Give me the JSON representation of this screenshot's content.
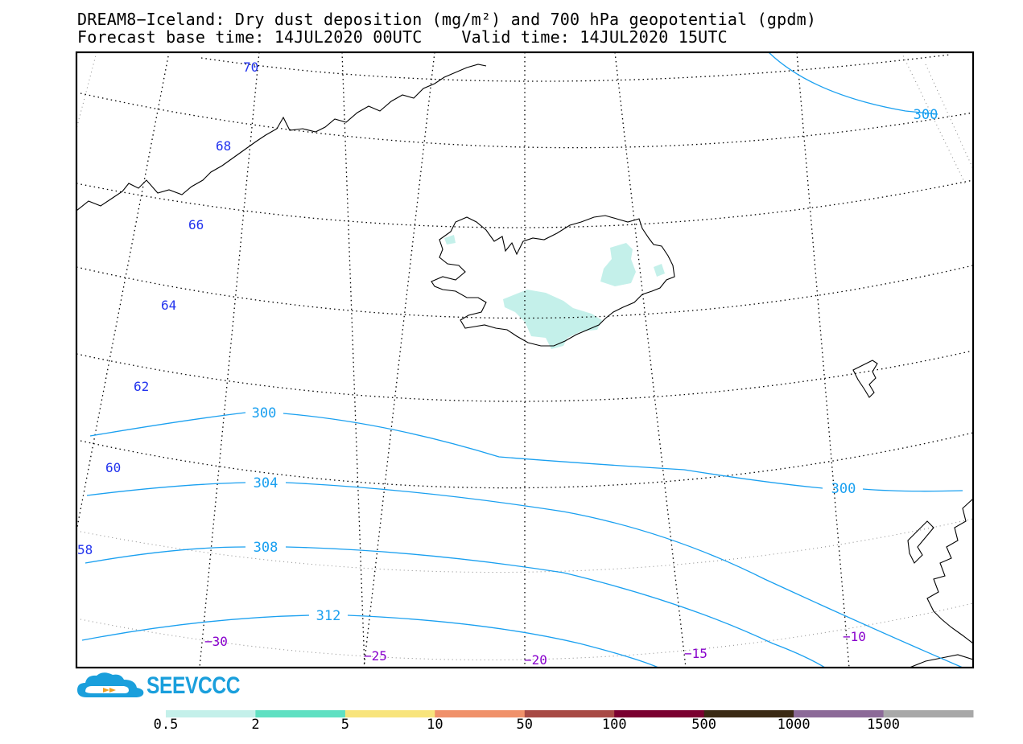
{
  "title": {
    "line1": "DREAM8−Iceland: Dry dust deposition (mg/m²) and 700 hPa geopotential (gpdm)",
    "line2": "Forecast base time: 14JUL2020 00UTC    Valid time: 14JUL2020 15UTC"
  },
  "map": {
    "region": "Iceland",
    "latitude_labels": [
      "70",
      "68",
      "66",
      "64",
      "62",
      "60",
      "58"
    ],
    "longitude_labels": [
      "−30",
      "−25",
      "−20",
      "−15",
      "−10"
    ],
    "geopotential_contours": [
      {
        "value": 300,
        "labels": [
          "300",
          "300",
          "300"
        ]
      },
      {
        "value": 304,
        "labels": [
          "304"
        ]
      },
      {
        "value": 308,
        "labels": [
          "308"
        ]
      },
      {
        "value": 312,
        "labels": [
          "312"
        ]
      }
    ],
    "colors": {
      "contour": "#1aa0f0",
      "lat_label": "#2233ee",
      "lon_label": "#8800cc",
      "deposition_0_5_2": "#c4f0ea"
    }
  },
  "colorbar": {
    "labels": [
      "0.5",
      "2",
      "5",
      "10",
      "50",
      "100",
      "500",
      "1000",
      "1500"
    ],
    "colors": [
      "#c4f0ea",
      "#5fe0c2",
      "#f8e47c",
      "#f0916a",
      "#a84a45",
      "#7a0030",
      "#3b2a14",
      "#8c6a98",
      "#a8a8a8"
    ]
  },
  "logo": {
    "text": "SEEVCCC",
    "icon": "cloud-icon"
  }
}
